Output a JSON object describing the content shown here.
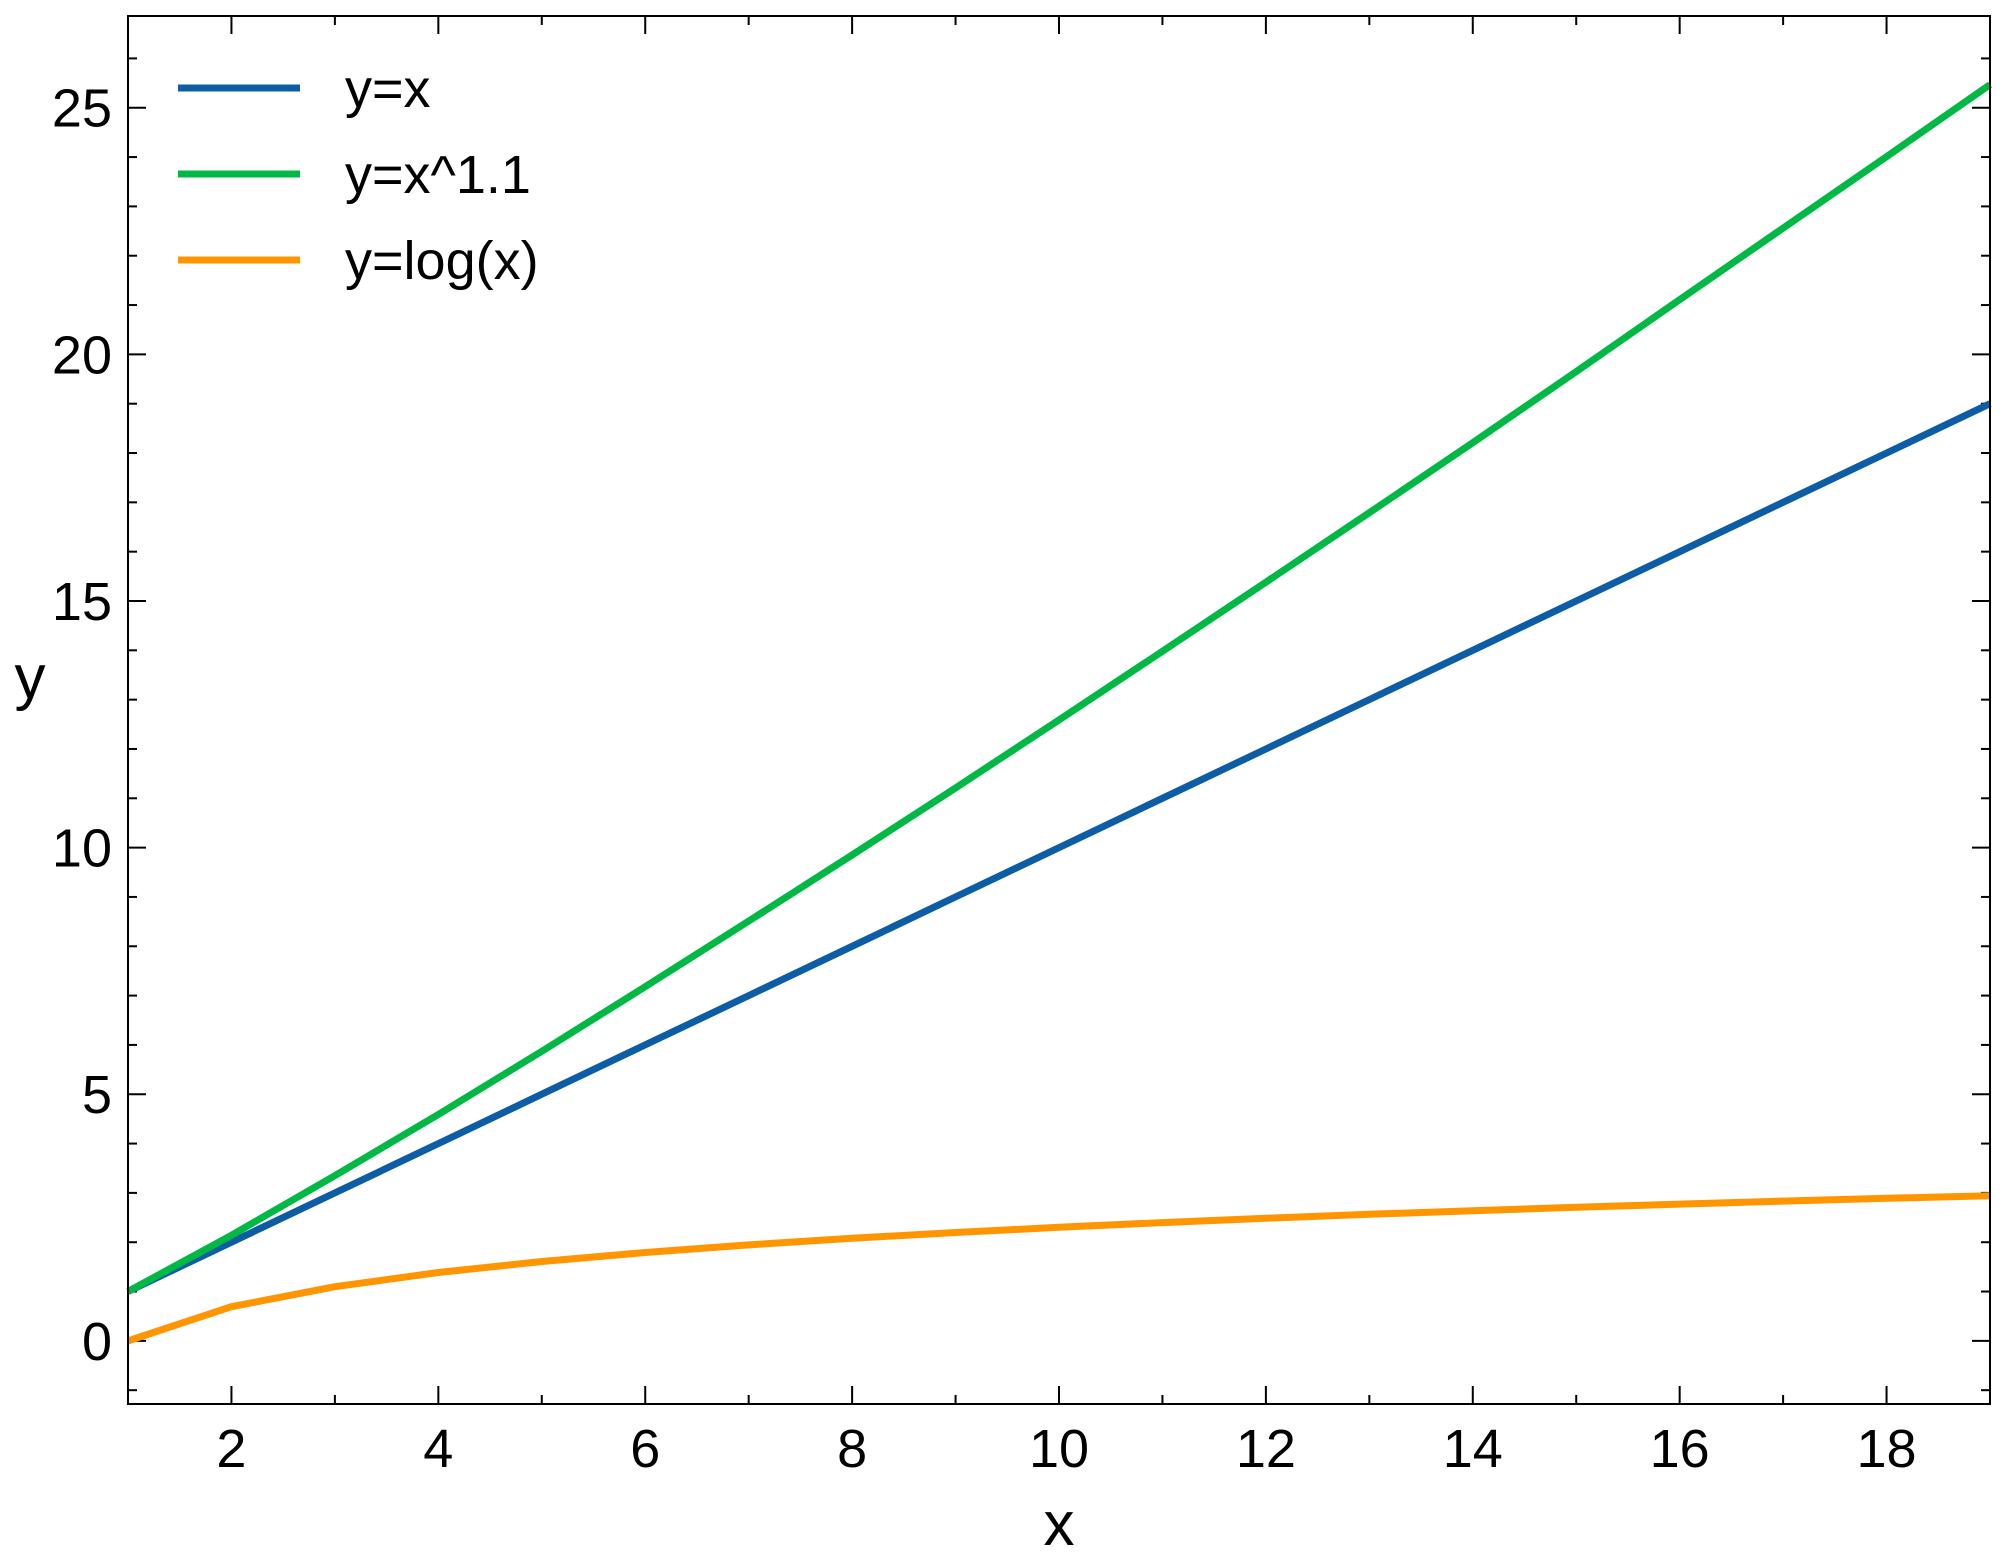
{
  "chart_data": {
    "type": "line",
    "title": "",
    "xlabel": "x",
    "ylabel": "y",
    "xlim": [
      1,
      19
    ],
    "ylim": [
      -1.28,
      26.86
    ],
    "x_ticks": [
      2,
      4,
      6,
      8,
      10,
      12,
      14,
      16,
      18
    ],
    "y_ticks": [
      0,
      5,
      10,
      15,
      20,
      25
    ],
    "x_minor_step": 1,
    "y_minor_step": 1,
    "grid": false,
    "legend_position": "top-left",
    "x": [
      1,
      2,
      3,
      4,
      5,
      6,
      7,
      8,
      9,
      10,
      11,
      12,
      13,
      14,
      15,
      16,
      17,
      18,
      19
    ],
    "series": [
      {
        "name": "y=x",
        "color": "#0c5da5",
        "values": [
          1,
          2,
          3,
          4,
          5,
          6,
          7,
          8,
          9,
          10,
          11,
          12,
          13,
          14,
          15,
          16,
          17,
          18,
          19
        ]
      },
      {
        "name": "y=x^1.1",
        "color": "#00b945",
        "values": [
          1,
          2.14,
          3.35,
          4.59,
          5.87,
          7.18,
          8.51,
          9.85,
          11.21,
          12.59,
          13.98,
          15.38,
          16.79,
          18.21,
          19.65,
          21.11,
          22.56,
          24.01,
          25.47
        ]
      },
      {
        "name": "y=log(x)",
        "color": "#ff9500",
        "values": [
          0,
          0.693,
          1.099,
          1.386,
          1.609,
          1.792,
          1.946,
          2.079,
          2.197,
          2.303,
          2.398,
          2.485,
          2.565,
          2.639,
          2.708,
          2.773,
          2.833,
          2.89,
          2.944
        ]
      }
    ]
  }
}
